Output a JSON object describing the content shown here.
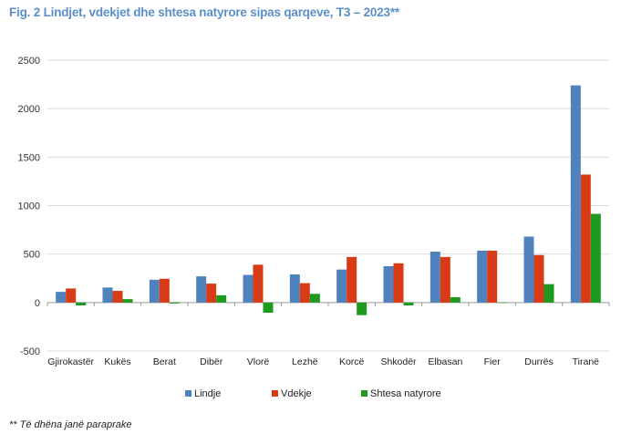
{
  "title": "Fig. 2  Lindjet, vdekjet dhe shtesa natyrore sipas qarqeve, T3 – 2023**",
  "footnote": "** Të dhëna janë paraprake",
  "colors": {
    "lindje": "#4f81bd",
    "vdekje": "#d83b15",
    "shtesa": "#1e9a1e"
  },
  "chart_data": {
    "type": "bar",
    "title": "Fig. 2  Lindjet, vdekjet dhe shtesa natyrore sipas qarqeve, T3 – 2023**",
    "xlabel": "",
    "ylabel": "",
    "ylim": [
      -500,
      2500
    ],
    "yticks": [
      -500,
      0,
      500,
      1000,
      1500,
      2000,
      2500
    ],
    "grid": true,
    "legend_position": "bottom",
    "categories": [
      "Gjirokastër",
      "Kukës",
      "Berat",
      "Dibër",
      "Vlorë",
      "Lezhë",
      "Korcë",
      "Shkodër",
      "Elbasan",
      "Fier",
      "Durrës",
      "Tiranë"
    ],
    "series": [
      {
        "name": "Lindje",
        "values": [
          110,
          155,
          235,
          270,
          285,
          290,
          340,
          375,
          525,
          535,
          680,
          2240
        ]
      },
      {
        "name": "Vdekje",
        "values": [
          145,
          120,
          245,
          195,
          390,
          200,
          470,
          405,
          470,
          535,
          490,
          1320
        ]
      },
      {
        "name": "Shtesa natyrore",
        "values": [
          -30,
          35,
          -10,
          75,
          -105,
          90,
          -130,
          -30,
          55,
          0,
          190,
          915
        ]
      }
    ]
  }
}
